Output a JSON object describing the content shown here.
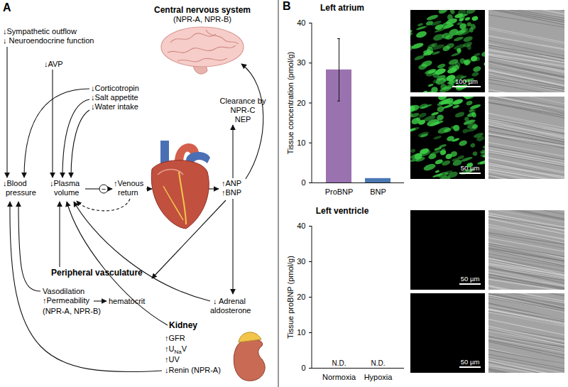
{
  "panel_a": {
    "label": "A",
    "cns": {
      "title": "Central nervous system",
      "receptors": "(NPR-A, NPR-B)"
    },
    "sympathetic": [
      "↓Sympathetic outflow",
      "↓ Neuroendocrine function"
    ],
    "avp": "↓AVP",
    "cns_effects": [
      "↓Corticotropin",
      "↓Salt appetite",
      "↓Water intake"
    ],
    "clearance": [
      "Clearance by",
      "NPR-C",
      "NEP"
    ],
    "blood_pressure": [
      "↓Blood",
      "pressure"
    ],
    "plasma_volume": [
      "↓Plasma",
      "volume"
    ],
    "feedback": "−",
    "venous_return": [
      "↑Venous",
      "return"
    ],
    "peptides": [
      "↑ANP",
      "↑BNP"
    ],
    "adrenal": [
      "↓ Adrenal",
      "aldosterone"
    ],
    "vasculature": {
      "title": "Peripheral vasculature",
      "effects": [
        "Vasodilation",
        "↑Permeability"
      ],
      "result": "hematocrit",
      "receptors": "(NPR-A, NPR-B)"
    },
    "kidney": {
      "title": "Kidney",
      "effects": [
        {
          "text": "↑GFR"
        },
        {
          "text": "↑U",
          "sub": "Na",
          "tail": "V"
        },
        {
          "text": "↑UV"
        },
        {
          "text": "↓Renin (NPR-A)"
        }
      ]
    }
  },
  "panel_b": {
    "label": "B",
    "images": {
      "left_atrium": [
        {
          "scale_bar": "100 µm"
        },
        {
          "scale_bar": "50 µm"
        }
      ],
      "left_ventricle": [
        {
          "scale_bar": "50 µm"
        },
        {
          "scale_bar": "50 µm"
        }
      ]
    }
  },
  "chart_data": [
    {
      "type": "bar",
      "title": "Left atrium",
      "y_label": "Tissue concentration (pmol/g)",
      "categories": [
        "ProBNP",
        "BNP"
      ],
      "values": [
        28.3,
        1.1
      ],
      "errors": [
        7.8,
        null
      ],
      "colors": [
        "#9b72b0",
        "#4a78b3"
      ],
      "ylim": [
        0,
        40
      ],
      "yticks": [
        0,
        10,
        20,
        30,
        40
      ]
    },
    {
      "type": "bar",
      "title": "Left ventricle",
      "y_label": "Tissue proBNP (pmol/g)",
      "categories": [
        "Normoxia",
        "Hypoxia"
      ],
      "values": [
        null,
        null
      ],
      "value_labels": [
        "N.D.",
        "N.D."
      ],
      "data_labels": true,
      "ylim": [
        0,
        40
      ],
      "yticks": [
        0,
        10,
        20,
        30,
        40
      ]
    }
  ]
}
